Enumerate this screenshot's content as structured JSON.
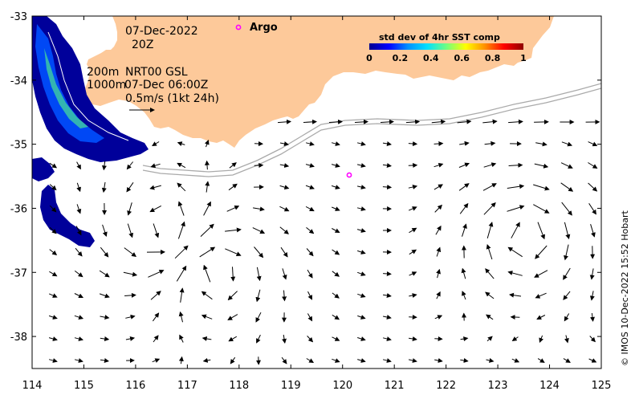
{
  "map": {
    "lon_range": [
      114,
      125
    ],
    "lat_range": [
      -38.5,
      -33
    ],
    "x_ticks": [
      "114",
      "115",
      "116",
      "117",
      "118",
      "119",
      "120",
      "121",
      "122",
      "123",
      "124",
      "125"
    ],
    "y_ticks": [
      "-33",
      "-34",
      "-35",
      "-36",
      "-37",
      "-38"
    ],
    "land_color": "#fdc99a",
    "current_arrows": "black",
    "contour_color": "#aaaaaa"
  },
  "annotations": {
    "date": "07-Dec-2022",
    "time": "20Z",
    "contour_200": "200m",
    "contour_1000": "1000m",
    "product": "NRT00 GSL",
    "product_time": "07-Dec 06:00Z",
    "scale": "0.5m/s (1kt 24h)"
  },
  "legend": {
    "argo_label": "Argo",
    "argo_color": "#ff00ff",
    "argo_positions": [
      [
        118.0,
        -33.17
      ],
      [
        120.1,
        -35.5
      ]
    ]
  },
  "colorbar": {
    "title": "std dev of 4hr SST comp",
    "labels": [
      "0",
      "0.2",
      "0.4",
      "0.6",
      "0.8",
      "1"
    ],
    "colors": [
      "#000090",
      "#0000ff",
      "#0090ff",
      "#00e0ff",
      "#70ff80",
      "#ffff00",
      "#ff9000",
      "#ff0000",
      "#900000"
    ]
  },
  "credit": "© IMOS 10-Dec-2022 15:52 Hobart"
}
